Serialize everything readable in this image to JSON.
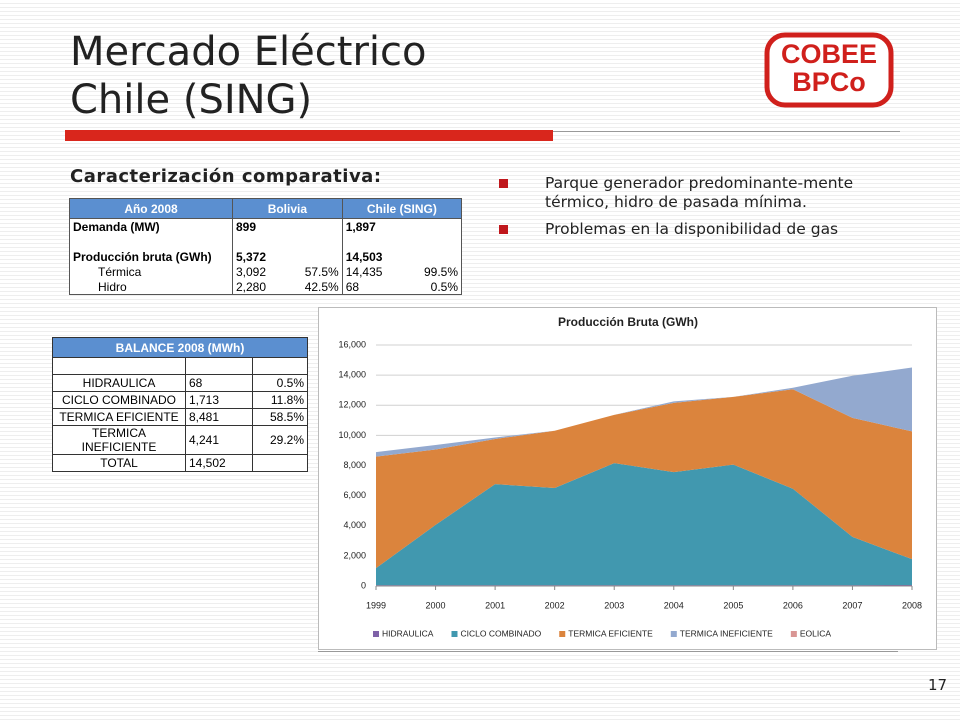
{
  "title_lines": [
    "Mercado Eléctrico",
    "Chile (SING)"
  ],
  "logo": {
    "lines": [
      "COBEE",
      "BPCo"
    ]
  },
  "subtitle": "Caracterización comparativa:",
  "bullets": [
    "Parque generador  predominante-mente térmico, hidro de pasada mínima.",
    "Problemas en la disponibilidad de gas"
  ],
  "table1": {
    "header": [
      "Año 2008",
      "Bolivia",
      "Chile (SING)"
    ],
    "rows": [
      [
        "Demanda (MW)",
        "899",
        null,
        "1,897",
        null
      ],
      [
        null,
        null,
        null,
        null,
        null
      ],
      [
        "Producción bruta (GWh)",
        "5,372",
        null,
        "14,503",
        null
      ],
      [
        "Térmica",
        "3,092",
        "57.5%",
        "14,435",
        "99.5%"
      ],
      [
        "Hidro",
        "2,280",
        "42.5%",
        "68",
        "0.5%"
      ]
    ]
  },
  "table2": {
    "header": "BALANCE 2008 (MWh)",
    "rows": [
      [
        null,
        null,
        null
      ],
      [
        "HIDRAULICA",
        "68",
        "0.5%"
      ],
      [
        "CICLO COMBINADO",
        "1,713",
        "11.8%"
      ],
      [
        "TERMICA EFICIENTE",
        "8,481",
        "58.5%"
      ],
      [
        "TERMICA INEFICIENTE",
        "4,241",
        "29.2%"
      ],
      [
        "TOTAL",
        "14,502",
        null
      ]
    ]
  },
  "chart_data": {
    "type": "stacked_area",
    "title": "Producción Bruta (GWh)",
    "x": [
      1999,
      2000,
      2001,
      2002,
      2003,
      2004,
      2005,
      2006,
      2007,
      2008
    ],
    "xlim": [
      1999,
      2008
    ],
    "xticks": [
      1999,
      2000,
      2001,
      2002,
      2003,
      2004,
      2005,
      2006,
      2007,
      2008
    ],
    "ylim": [
      0,
      16000
    ],
    "yticks": [
      0,
      {
        "value": 2000,
        "label": "2,000"
      },
      {
        "value": 4000,
        "label": "4,000"
      },
      {
        "value": 6000,
        "label": "6,000"
      },
      {
        "value": 8000,
        "label": "8,000"
      },
      {
        "value": 10000,
        "label": "10,000"
      },
      {
        "value": 12000,
        "label": "12,000"
      },
      {
        "value": 14000,
        "label": "14,000"
      },
      {
        "value": 16000,
        "label": "16,000"
      }
    ],
    "grid": true,
    "legend": "bottom",
    "series": [
      {
        "name": "HIDRAULICA",
        "color": "#7f62a8",
        "values": [
          60,
          60,
          60,
          60,
          60,
          60,
          60,
          60,
          60,
          68
        ]
      },
      {
        "name": "CICLO COMBINADO",
        "color": "#4198af",
        "values": [
          1130,
          4000,
          6700,
          6450,
          8100,
          7500,
          8000,
          6400,
          3200,
          1713
        ]
      },
      {
        "name": "TERMICA EFICIENTE",
        "color": "#db843d",
        "values": [
          7400,
          5000,
          3000,
          3800,
          3200,
          4600,
          4500,
          6600,
          7900,
          8481
        ]
      },
      {
        "name": "TERMICA INEFICIENTE",
        "color": "#93a9cf",
        "values": [
          300,
          300,
          100,
          0,
          0,
          100,
          0,
          100,
          2800,
          4241
        ]
      },
      {
        "name": "EOLICA",
        "color": "#d99694",
        "values": [
          0,
          0,
          0,
          0,
          0,
          0,
          0,
          0,
          0,
          0
        ]
      }
    ]
  },
  "page_number": "17"
}
